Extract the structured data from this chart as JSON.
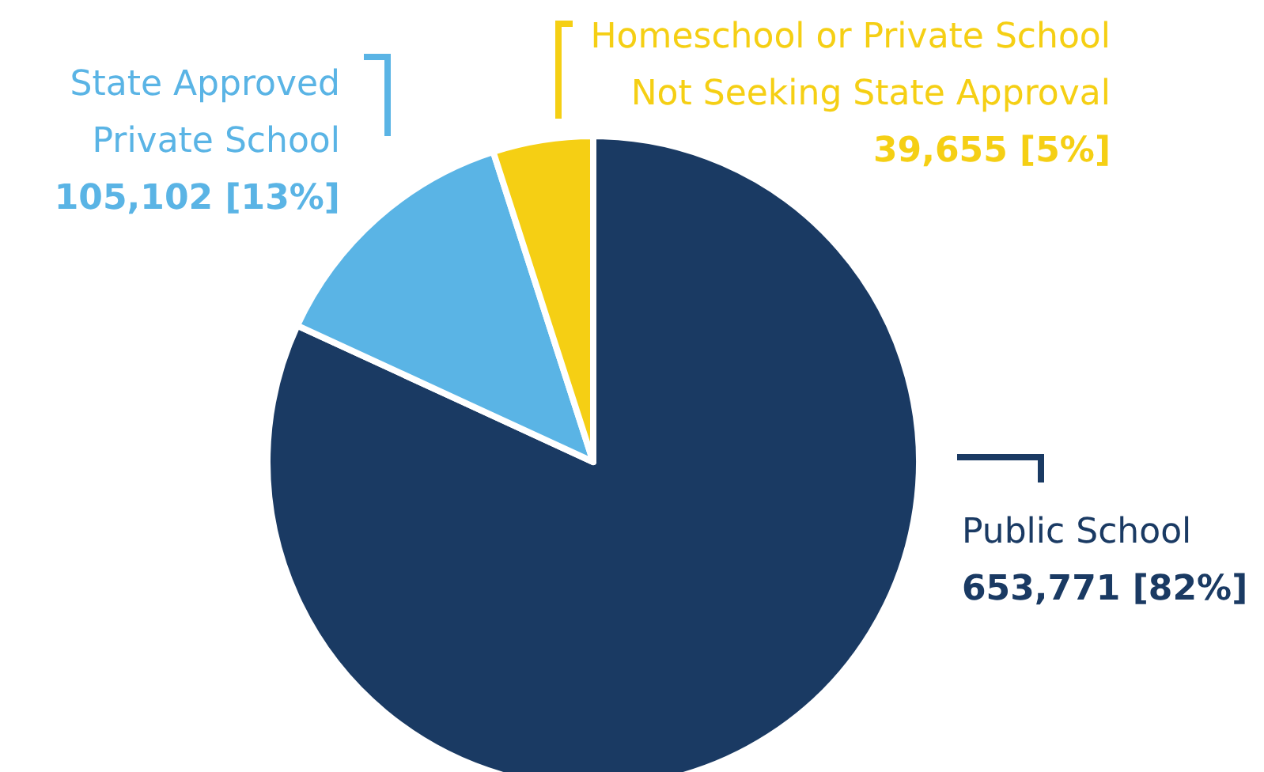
{
  "chart_data": {
    "type": "pie",
    "categories": [
      "Public School",
      "State Approved\nPrivate School",
      "Homeschool or Private School\nNot Seeking State Approval"
    ],
    "values": [
      653771,
      105102,
      39655
    ],
    "colors": [
      "#1a3a63",
      "#5ab4e5",
      "#f5cf14"
    ],
    "value_labels": [
      "653,771 [82%]",
      "105,102 [13%]",
      "39,655 [5%]"
    ]
  }
}
